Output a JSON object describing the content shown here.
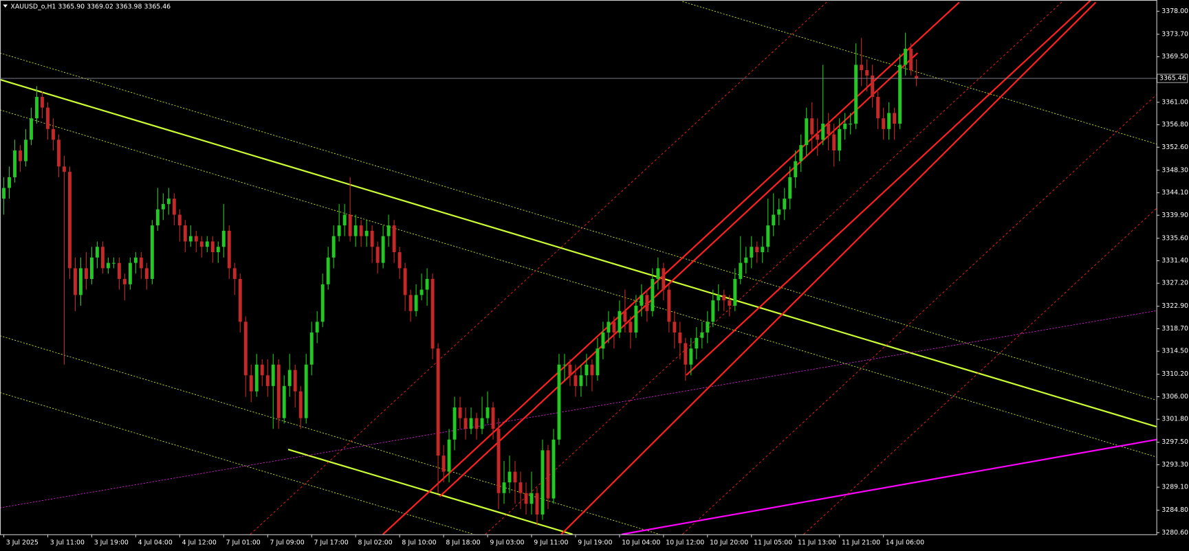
{
  "chart_data": {
    "type": "candlestick",
    "title": "XAUUSD_o,H1  3365.90 3369.02 3363.98 3365.46",
    "current_price": 3365.46,
    "up_color": "#22c922",
    "down_color": "#c62828",
    "ylim": [
      3280.3,
      3380.1
    ],
    "yticks": [
      {
        "value": 3378,
        "label": "3378.00"
      },
      {
        "value": 3373.7,
        "label": "3373.70"
      },
      {
        "value": 3369.5,
        "label": "3369.50"
      },
      {
        "value": 3361,
        "label": "3361.00"
      },
      {
        "value": 3356.8,
        "label": "3356.80"
      },
      {
        "value": 3352.6,
        "label": "3352.60"
      },
      {
        "value": 3348.3,
        "label": "3348.30"
      },
      {
        "value": 3344.1,
        "label": "3344.10"
      },
      {
        "value": 3339.9,
        "label": "3339.90"
      },
      {
        "value": 3335.6,
        "label": "3335.60"
      },
      {
        "value": 3331.4,
        "label": "3331.40"
      },
      {
        "value": 3327.2,
        "label": "3327.20"
      },
      {
        "value": 3322.9,
        "label": "3322.90"
      },
      {
        "value": 3318.7,
        "label": "3318.70"
      },
      {
        "value": 3314.5,
        "label": "3314.50"
      },
      {
        "value": 3310.2,
        "label": "3310.20"
      },
      {
        "value": 3306,
        "label": "3306.00"
      },
      {
        "value": 3301.8,
        "label": "3301.80"
      },
      {
        "value": 3297.5,
        "label": "3297.50"
      },
      {
        "value": 3293.3,
        "label": "3293.30"
      },
      {
        "value": 3289.1,
        "label": "3289.10"
      },
      {
        "value": 3284.8,
        "label": "3284.80"
      },
      {
        "value": 3280.6,
        "label": "3280.60"
      }
    ],
    "categories": [
      "3 Jul 2025",
      null,
      null,
      null,
      null,
      null,
      null,
      null,
      "3 Jul 11:00",
      null,
      null,
      null,
      null,
      null,
      null,
      null,
      "3 Jul 19:00",
      null,
      null,
      null,
      null,
      null,
      null,
      null,
      "4 Jul 04:00",
      null,
      null,
      null,
      null,
      null,
      null,
      null,
      "4 Jul 12:00",
      null,
      null,
      null,
      null,
      null,
      null,
      null,
      "7 Jul 01:00",
      null,
      null,
      null,
      null,
      null,
      null,
      null,
      "7 Jul 09:00",
      null,
      null,
      null,
      null,
      null,
      null,
      null,
      "7 Jul 17:00",
      null,
      null,
      null,
      null,
      null,
      null,
      null,
      "8 Jul 02:00",
      null,
      null,
      null,
      null,
      null,
      null,
      null,
      "8 Jul 10:00",
      null,
      null,
      null,
      null,
      null,
      null,
      null,
      "8 Jul 18:00",
      null,
      null,
      null,
      null,
      null,
      null,
      null,
      "9 Jul 03:00",
      null,
      null,
      null,
      null,
      null,
      null,
      null,
      "9 Jul 11:00",
      null,
      null,
      null,
      null,
      null,
      null,
      null,
      "9 Jul 19:00",
      null,
      null,
      null,
      null,
      null,
      null,
      null,
      "10 Jul 04:00",
      null,
      null,
      null,
      null,
      null,
      null,
      null,
      "10 Jul 12:00",
      null,
      null,
      null,
      null,
      null,
      null,
      null,
      "10 Jul 20:00",
      null,
      null,
      null,
      null,
      null,
      null,
      null,
      "11 Jul 05:00",
      null,
      null,
      null,
      null,
      null,
      null,
      null,
      "11 Jul 13:00",
      null,
      null,
      null,
      null,
      null,
      null,
      null,
      "11 Jul 21:00",
      null,
      null,
      null,
      null,
      null,
      null,
      null,
      "14 Jul 06:00",
      null,
      null,
      null,
      null,
      null,
      null
    ],
    "open": [
      3343,
      3345,
      3347,
      3352,
      3350,
      3354,
      3358,
      3362,
      3360,
      3356,
      3354,
      3349,
      3348,
      3330,
      3325,
      3330,
      3328,
      3332,
      3334,
      3330,
      3331,
      3331,
      3328,
      3327,
      3331,
      3332,
      3330,
      3328,
      3338,
      3341,
      3342,
      3343,
      3340,
      3338,
      3335,
      3336,
      3335,
      3334,
      3335,
      3333,
      3334,
      3337,
      3330,
      3328,
      3320,
      3310,
      3307,
      3312,
      3310,
      3308,
      3312,
      3302,
      3308,
      3311,
      3307,
      3302,
      3312,
      3318,
      3320,
      3327,
      3332,
      3336,
      3338,
      3340,
      3336,
      3338,
      3336,
      3337,
      3334,
      3331,
      3336,
      3338,
      3333,
      3330,
      3325,
      3322,
      3325,
      3326,
      3328,
      3315,
      3295,
      3292,
      3298,
      3304,
      3302,
      3300,
      3302,
      3300,
      3302,
      3304,
      3300,
      3288,
      3290,
      3292,
      3290,
      3288,
      3286,
      3288,
      3284,
      3296,
      3287,
      3298,
      3312,
      3312,
      3310,
      3308,
      3310,
      3312,
      3310,
      3315,
      3318,
      3320,
      3318,
      3322,
      3320,
      3318,
      3323,
      3325,
      3322,
      3328,
      3330,
      3326,
      3320,
      3318,
      3316,
      3312,
      3315,
      3317,
      3318,
      3320,
      3324,
      3325,
      3324,
      3323,
      3328,
      3331,
      3332,
      3334,
      3333,
      3334,
      3338,
      3340,
      3341,
      3343,
      3347,
      3350,
      3353,
      3358,
      3355,
      3354,
      3357,
      3355,
      3352,
      3356,
      3357,
      3357,
      3368,
      3367,
      3366,
      3362,
      3358,
      3356,
      3359,
      3357,
      3368,
      3371,
      3365.9
    ],
    "high": [
      3347,
      3349,
      3354,
      3353,
      3356,
      3360,
      3364,
      3363,
      3361,
      3358,
      3355,
      3351,
      3349,
      3332,
      3332,
      3333,
      3334,
      3335,
      3335,
      3332,
      3332,
      3332,
      3329,
      3332,
      3333,
      3333,
      3331,
      3339,
      3345,
      3344,
      3345,
      3344,
      3341,
      3339,
      3338,
      3337,
      3336,
      3336,
      3336,
      3335,
      3342,
      3338,
      3331,
      3329,
      3321,
      3312,
      3314,
      3313,
      3313,
      3314,
      3313,
      3310,
      3314,
      3312,
      3308,
      3314,
      3320,
      3322,
      3329,
      3334,
      3338,
      3342,
      3342,
      3347,
      3340,
      3339,
      3339,
      3338,
      3335,
      3338,
      3340,
      3339,
      3334,
      3331,
      3326,
      3327,
      3329,
      3330,
      3329,
      3316,
      3297,
      3300,
      3306,
      3306,
      3304,
      3304,
      3303,
      3306,
      3307,
      3305,
      3302,
      3294,
      3295,
      3294,
      3292,
      3290,
      3292,
      3289,
      3298,
      3297,
      3300,
      3314,
      3314,
      3313,
      3312,
      3312,
      3314,
      3313,
      3317,
      3320,
      3322,
      3321,
      3324,
      3326,
      3321,
      3325,
      3327,
      3326,
      3330,
      3332,
      3331,
      3327,
      3322,
      3320,
      3317,
      3317,
      3319,
      3320,
      3322,
      3326,
      3327,
      3326,
      3325,
      3330,
      3336,
      3334,
      3336,
      3335,
      3336,
      3343,
      3344,
      3343,
      3345,
      3349,
      3352,
      3355,
      3360,
      3361,
      3358,
      3368,
      3359,
      3357,
      3358,
      3359,
      3359,
      3372,
      3373,
      3369,
      3368,
      3363,
      3360,
      3361,
      3360,
      3370,
      3374,
      3372,
      3369.02
    ],
    "low": [
      3340,
      3343,
      3346,
      3348,
      3349,
      3353,
      3357,
      3358,
      3354,
      3352,
      3347,
      3312,
      3328,
      3322,
      3323,
      3326,
      3327,
      3330,
      3329,
      3329,
      3330,
      3326,
      3324,
      3326,
      3329,
      3328,
      3326,
      3327,
      3337,
      3339,
      3340,
      3338,
      3335,
      3333,
      3334,
      3333,
      3332,
      3333,
      3331,
      3331,
      3332,
      3328,
      3325,
      3318,
      3306,
      3305,
      3306,
      3308,
      3306,
      3300,
      3300,
      3301,
      3306,
      3304,
      3300,
      3301,
      3310,
      3316,
      3319,
      3326,
      3330,
      3335,
      3336,
      3335,
      3334,
      3334,
      3334,
      3331,
      3329,
      3330,
      3334,
      3331,
      3328,
      3322,
      3320,
      3321,
      3324,
      3323,
      3313,
      3288,
      3290,
      3290,
      3296,
      3300,
      3298,
      3299,
      3298,
      3299,
      3301,
      3298,
      3285,
      3286,
      3288,
      3286,
      3285,
      3284,
      3284,
      3282,
      3283,
      3285,
      3286,
      3297,
      3309,
      3308,
      3306,
      3306,
      3308,
      3307,
      3309,
      3313,
      3316,
      3315,
      3317,
      3318,
      3315,
      3317,
      3321,
      3320,
      3321,
      3326,
      3324,
      3318,
      3315,
      3313,
      3309,
      3310,
      3313,
      3315,
      3316,
      3319,
      3322,
      3322,
      3321,
      3322,
      3327,
      3329,
      3330,
      3331,
      3331,
      3333,
      3336,
      3338,
      3339,
      3341,
      3345,
      3348,
      3351,
      3352,
      3351,
      3353,
      3352,
      3349,
      3350,
      3354,
      3355,
      3356,
      3364,
      3363,
      3360,
      3356,
      3354,
      3354,
      3354,
      3356,
      3366,
      3366,
      3363.98
    ],
    "close": [
      3345,
      3347,
      3352,
      3350,
      3354,
      3358,
      3362,
      3360,
      3356,
      3354,
      3349,
      3348,
      3330,
      3325,
      3330,
      3328,
      3332,
      3334,
      3330,
      3331,
      3331,
      3328,
      3327,
      3331,
      3332,
      3330,
      3328,
      3338,
      3341,
      3342,
      3343,
      3340,
      3338,
      3335,
      3336,
      3335,
      3334,
      3335,
      3333,
      3334,
      3337,
      3330,
      3328,
      3320,
      3310,
      3307,
      3312,
      3310,
      3308,
      3312,
      3302,
      3308,
      3311,
      3307,
      3302,
      3312,
      3318,
      3320,
      3327,
      3332,
      3336,
      3338,
      3340,
      3336,
      3338,
      3336,
      3337,
      3334,
      3331,
      3336,
      3338,
      3333,
      3330,
      3325,
      3322,
      3325,
      3326,
      3328,
      3315,
      3295,
      3292,
      3298,
      3304,
      3302,
      3300,
      3302,
      3300,
      3302,
      3304,
      3300,
      3288,
      3290,
      3292,
      3290,
      3288,
      3286,
      3288,
      3284,
      3296,
      3287,
      3298,
      3312,
      3312,
      3310,
      3308,
      3310,
      3312,
      3310,
      3315,
      3318,
      3320,
      3318,
      3322,
      3320,
      3318,
      3323,
      3325,
      3322,
      3328,
      3330,
      3326,
      3320,
      3318,
      3316,
      3312,
      3315,
      3317,
      3318,
      3320,
      3324,
      3325,
      3324,
      3323,
      3328,
      3331,
      3332,
      3334,
      3333,
      3334,
      3338,
      3340,
      3341,
      3343,
      3347,
      3350,
      3353,
      3358,
      3355,
      3354,
      3357,
      3355,
      3352,
      3356,
      3357,
      3357,
      3368,
      3367,
      3366,
      3362,
      3358,
      3356,
      3359,
      3357,
      3368,
      3371,
      3367,
      3365.46
    ]
  }
}
